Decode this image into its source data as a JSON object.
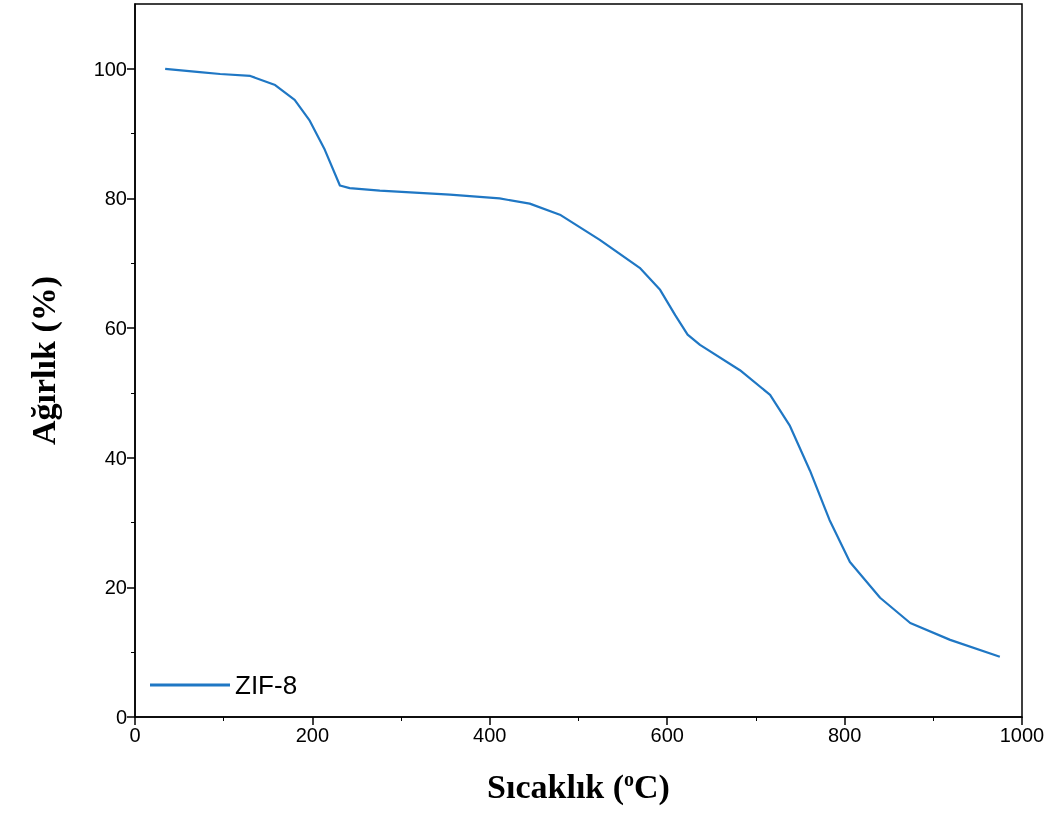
{
  "chart_data": {
    "type": "line",
    "xlabel": "Sıcaklık ($^{o}$C)",
    "ylabel": "Ağırlık (%)",
    "x": [
      34,
      73,
      96,
      130,
      158,
      180,
      197,
      214,
      231,
      242,
      276,
      355,
      411,
      445,
      479,
      524,
      569,
      592,
      609,
      623,
      637,
      682,
      716,
      738,
      761,
      783,
      806,
      840,
      874,
      919,
      975
    ],
    "series": [
      {
        "name": "ZIF-8",
        "color": "#1f77c4",
        "values": [
          100,
          99.5,
          99.2,
          98.9,
          97.5,
          95.2,
          92,
          87.5,
          82,
          81.6,
          81.2,
          80.6,
          80,
          79.2,
          77.5,
          73.6,
          69.3,
          65.9,
          62,
          59,
          57.4,
          53.5,
          49.7,
          45,
          38,
          30.4,
          23.9,
          18.4,
          14.5,
          11.9,
          9.3
        ]
      }
    ],
    "xlim": [
      0,
      1000
    ],
    "xticks": [
      0,
      200,
      400,
      600,
      800,
      1000
    ],
    "ylim": [
      0,
      110
    ],
    "yticks": [
      0,
      20,
      40,
      60,
      80,
      100
    ],
    "grid": false,
    "legend": "bottom left",
    "marker": "none",
    "line_style": "solid"
  }
}
